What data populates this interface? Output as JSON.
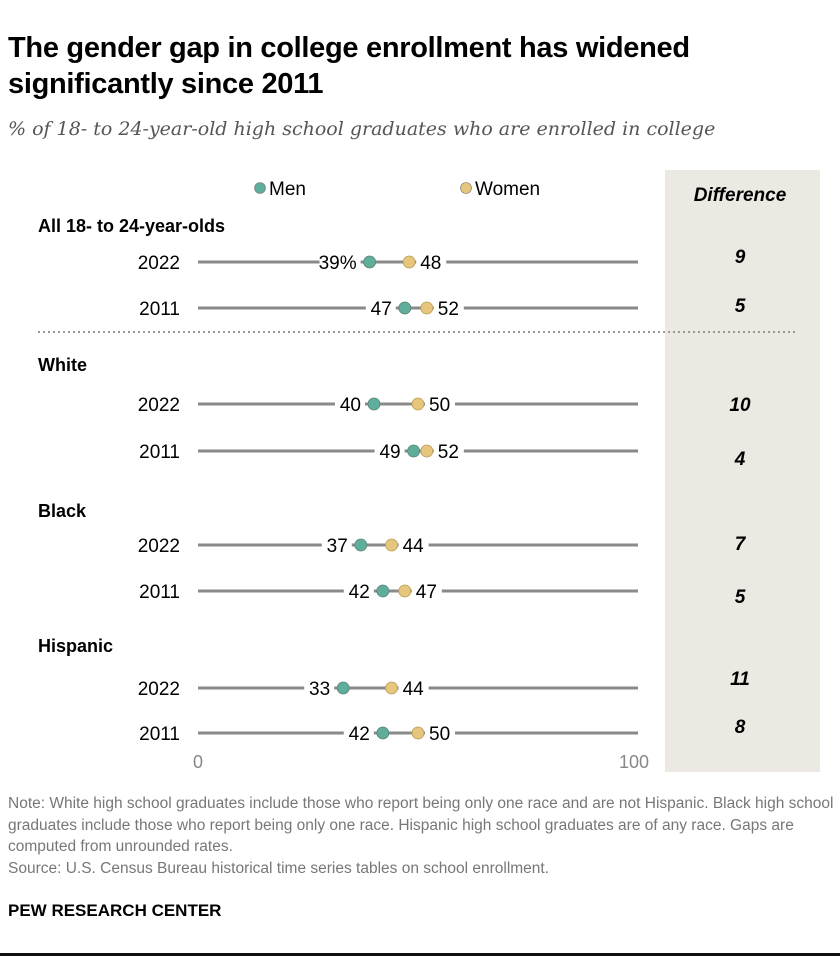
{
  "title": "The gender gap in college enrollment has widened significantly since 2011",
  "subtitle": "% of 18- to 24-year-old high school graduates who are enrolled in college",
  "note": "Note: White high school graduates include those who report being only one race and are not Hispanic. Black high school graduates include those who report being only one race. Hispanic high school graduates are of any race. Gaps are computed from unrounded rates.",
  "source": "Source: U.S. Census Bureau historical time series tables on school enrollment.",
  "brand": "PEW RESEARCH CENTER",
  "colors": {
    "men": "#5fae9b",
    "women": "#e6c57c",
    "line": "#8a8a8a",
    "panel": "#ece9e2"
  },
  "chart_data": {
    "type": "dot",
    "xlim": [
      0,
      100
    ],
    "xticks": [
      "0",
      "100"
    ],
    "legend": {
      "position": "top",
      "entries": [
        {
          "name": "Men",
          "series": "men"
        },
        {
          "name": "Women",
          "series": "women"
        }
      ]
    },
    "difference_header": "Difference",
    "groups": [
      {
        "label": "All 18- to 24-year-olds",
        "rows": [
          {
            "year": "2022",
            "men": 39,
            "women": 48,
            "men_label": "39%",
            "women_label": "48",
            "difference": "9"
          },
          {
            "year": "2011",
            "men": 47,
            "women": 52,
            "men_label": "47",
            "women_label": "52",
            "difference": "5"
          }
        ]
      },
      {
        "label": "White",
        "rows": [
          {
            "year": "2022",
            "men": 40,
            "women": 50,
            "men_label": "40",
            "women_label": "50",
            "difference": "10"
          },
          {
            "year": "2011",
            "men": 49,
            "women": 52,
            "men_label": "49",
            "women_label": "52",
            "difference": "4"
          }
        ]
      },
      {
        "label": "Black",
        "rows": [
          {
            "year": "2022",
            "men": 37,
            "women": 44,
            "men_label": "37",
            "women_label": "44",
            "difference": "7"
          },
          {
            "year": "2011",
            "men": 42,
            "women": 47,
            "men_label": "42",
            "women_label": "47",
            "difference": "5"
          }
        ]
      },
      {
        "label": "Hispanic",
        "rows": [
          {
            "year": "2022",
            "men": 33,
            "women": 44,
            "men_label": "33",
            "women_label": "44",
            "difference": "11"
          },
          {
            "year": "2011",
            "men": 42,
            "women": 50,
            "men_label": "42",
            "women_label": "50",
            "difference": "8"
          }
        ]
      }
    ]
  }
}
